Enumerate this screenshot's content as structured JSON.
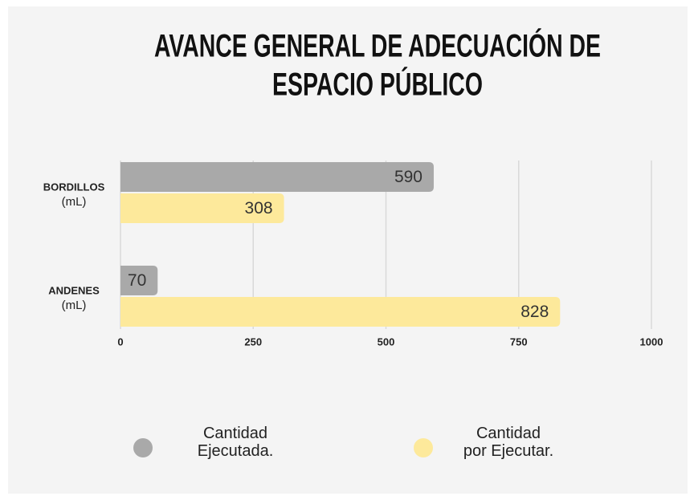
{
  "chart_data": {
    "type": "hbar",
    "title": [
      "AVANCE GENERAL DE ADECUACIÓN DE",
      "ESPACIO PÚBLICO"
    ],
    "categories": [
      [
        "BORDILLOS",
        "(mL)"
      ],
      [
        "ANDENES",
        "(mL)"
      ]
    ],
    "series": [
      {
        "name": "Cantidad Ejecutada.",
        "color": "#a9a9a9",
        "values": [
          590,
          70
        ]
      },
      {
        "name": "Cantidad por Ejecutar.",
        "color": "#fde99b",
        "values": [
          308,
          828
        ]
      }
    ],
    "xlim": [
      0,
      1000
    ],
    "xticks": [
      0,
      250,
      500,
      750,
      1000
    ],
    "grid": true
  }
}
